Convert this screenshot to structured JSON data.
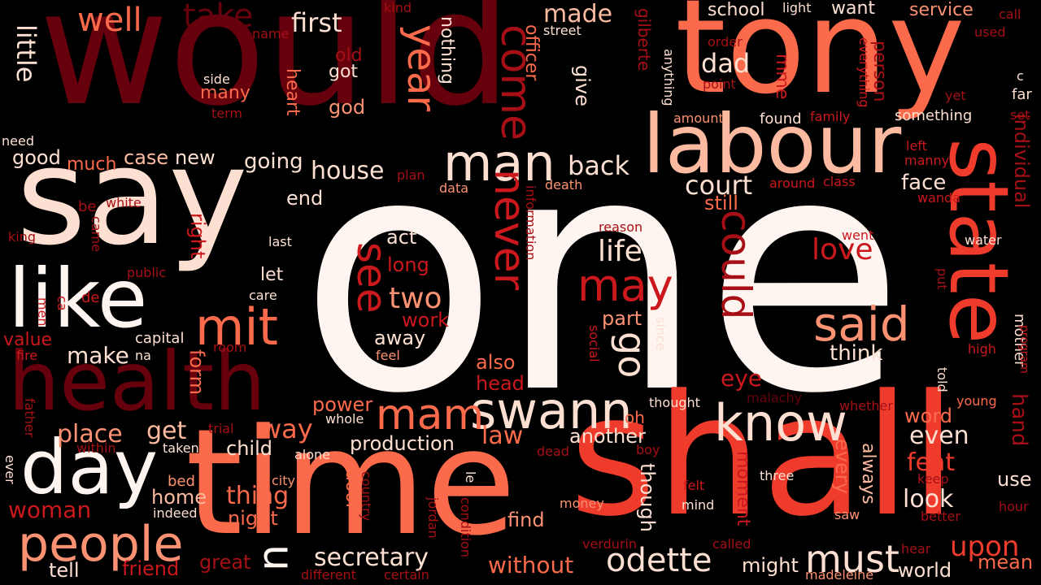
{
  "background": "#000000",
  "palette": {
    "darkest": "#67000d",
    "dark": "#a50f15",
    "red": "#cb181d",
    "bright_red": "#ef3b2c",
    "salmon": "#fb6a4a",
    "light_salmon": "#fc9272",
    "peach": "#fcbba1",
    "pale": "#fee0d2",
    "near_white": "#fff5f0"
  },
  "words": [
    {
      "text": "one",
      "color": "#fff5f0"
    },
    {
      "text": "would",
      "color": "#67000d"
    },
    {
      "text": "tony",
      "color": "#fb6a4a"
    },
    {
      "text": "say",
      "color": "#fee0d2"
    },
    {
      "text": "time",
      "color": "#fb6a4a"
    },
    {
      "text": "shall",
      "color": "#ef3b2c"
    },
    {
      "text": "labour",
      "color": "#fcbba1"
    },
    {
      "text": "state",
      "color": "#ef3b2c"
    },
    {
      "text": "health",
      "color": "#67000d"
    },
    {
      "text": "like",
      "color": "#fff5f0"
    },
    {
      "text": "day",
      "color": "#fff5f0"
    },
    {
      "text": "swann",
      "color": "#fee0d2"
    },
    {
      "text": "know",
      "color": "#fee0d2"
    },
    {
      "text": "man",
      "color": "#fee0d2"
    },
    {
      "text": "people",
      "color": "#fc9272"
    },
    {
      "text": "mit",
      "color": "#fb6a4a"
    },
    {
      "text": "said",
      "color": "#fc9272"
    },
    {
      "text": "odette",
      "color": "#fee0d2"
    },
    {
      "text": "mam",
      "color": "#fb6a4a"
    },
    {
      "text": "may",
      "color": "#cb181d"
    },
    {
      "text": "come",
      "color": "#a50f15"
    },
    {
      "text": "year",
      "color": "#fb6a4a"
    },
    {
      "text": "never",
      "color": "#cb181d"
    },
    {
      "text": "could",
      "color": "#a50f15"
    },
    {
      "text": "see",
      "color": "#cb181d"
    },
    {
      "text": "go",
      "color": "#fee0d2"
    },
    {
      "text": "must",
      "color": "#fee0d2"
    },
    {
      "text": "u",
      "color": "#fff5f0"
    },
    {
      "text": "well",
      "color": "#fb6a4a"
    },
    {
      "text": "take",
      "color": "#67000d"
    },
    {
      "text": "first",
      "color": "#fee0d2"
    },
    {
      "text": "made",
      "color": "#fcbba1"
    },
    {
      "text": "school",
      "color": "#fee0d2"
    },
    {
      "text": "want",
      "color": "#fee0d2"
    },
    {
      "text": "service",
      "color": "#fc9272"
    },
    {
      "text": "little",
      "color": "#fee0d2"
    },
    {
      "text": "dad",
      "color": "#fee0d2"
    },
    {
      "text": "back",
      "color": "#fee0d2"
    },
    {
      "text": "court",
      "color": "#fee0d2"
    },
    {
      "text": "still",
      "color": "#fb6a4a"
    },
    {
      "text": "house",
      "color": "#fee0d2"
    },
    {
      "text": "good",
      "color": "#fee0d2"
    },
    {
      "text": "case",
      "color": "#fcbba1"
    },
    {
      "text": "new",
      "color": "#fee0d2"
    },
    {
      "text": "much",
      "color": "#fb6a4a"
    },
    {
      "text": "going",
      "color": "#fee0d2"
    },
    {
      "text": "end",
      "color": "#fee0d2"
    },
    {
      "text": "face",
      "color": "#fee0d2"
    },
    {
      "text": "individual",
      "color": "#a50f15"
    },
    {
      "text": "life",
      "color": "#fee0d2"
    },
    {
      "text": "love",
      "color": "#cb181d"
    },
    {
      "text": "two",
      "color": "#fc9272"
    },
    {
      "text": "act",
      "color": "#fee0d2"
    },
    {
      "text": "long",
      "color": "#cb181d"
    },
    {
      "text": "make",
      "color": "#fee0d2"
    },
    {
      "text": "form",
      "color": "#fb6a4a"
    },
    {
      "text": "right",
      "color": "#cb181d"
    },
    {
      "text": "let",
      "color": "#fee0d2"
    },
    {
      "text": "think",
      "color": "#fee0d2"
    },
    {
      "text": "eye",
      "color": "#cb181d"
    },
    {
      "text": "part",
      "color": "#fc9272"
    },
    {
      "text": "away",
      "color": "#fee0d2"
    },
    {
      "text": "work",
      "color": "#cb181d"
    },
    {
      "text": "also",
      "color": "#fb6a4a"
    },
    {
      "text": "head",
      "color": "#cb181d"
    },
    {
      "text": "power",
      "color": "#fb6a4a"
    },
    {
      "text": "place",
      "color": "#fc9272"
    },
    {
      "text": "get",
      "color": "#fcbba1"
    },
    {
      "text": "way",
      "color": "#fb6a4a"
    },
    {
      "text": "law",
      "color": "#fb6a4a"
    },
    {
      "text": "child",
      "color": "#fee0d2"
    },
    {
      "text": "production",
      "color": "#fee0d2"
    },
    {
      "text": "another",
      "color": "#fee0d2"
    },
    {
      "text": "even",
      "color": "#fee0d2"
    },
    {
      "text": "feat",
      "color": "#ef3b2c"
    },
    {
      "text": "hand",
      "color": "#a50f15"
    },
    {
      "text": "word",
      "color": "#fb6a4a"
    },
    {
      "text": "every",
      "color": "#fb6a4a"
    },
    {
      "text": "always",
      "color": "#fcbba1"
    },
    {
      "text": "look",
      "color": "#fee0d2"
    },
    {
      "text": "upon",
      "color": "#ef3b2c"
    },
    {
      "text": "use",
      "color": "#fee0d2"
    },
    {
      "text": "thing",
      "color": "#fb6a4a"
    },
    {
      "text": "woman",
      "color": "#cb181d"
    },
    {
      "text": "home",
      "color": "#fcbba1"
    },
    {
      "text": "night",
      "color": "#fb6a4a"
    },
    {
      "text": "door",
      "color": "#fb6a4a"
    },
    {
      "text": "find",
      "color": "#fc9272"
    },
    {
      "text": "though",
      "color": "#fee0d2"
    },
    {
      "text": "moment",
      "color": "#cb181d"
    },
    {
      "text": "secretary",
      "color": "#fee0d2"
    },
    {
      "text": "without",
      "color": "#fb6a4a"
    },
    {
      "text": "might",
      "color": "#fee0d2"
    },
    {
      "text": "world",
      "color": "#fee0d2"
    },
    {
      "text": "mean",
      "color": "#fb6a4a"
    },
    {
      "text": "tell",
      "color": "#fee0d2"
    },
    {
      "text": "friend",
      "color": "#cb181d"
    },
    {
      "text": "great",
      "color": "#a50f15"
    },
    {
      "text": "nothing",
      "color": "#fee0d2"
    },
    {
      "text": "officer",
      "color": "#fb6a4a"
    },
    {
      "text": "give",
      "color": "#fee0d2"
    },
    {
      "text": "gilberte",
      "color": "#a50f15"
    },
    {
      "text": "mme",
      "color": "#cb181d"
    },
    {
      "text": "person",
      "color": "#a50f15"
    },
    {
      "text": "got",
      "color": "#fee0d2"
    },
    {
      "text": "god",
      "color": "#fc9272"
    },
    {
      "text": "old",
      "color": "#a50f15"
    },
    {
      "text": "many",
      "color": "#fb6a4a"
    },
    {
      "text": "heart",
      "color": "#fb6a4a"
    },
    {
      "text": "found",
      "color": "#fee0d2"
    },
    {
      "text": "something",
      "color": "#fee0d2"
    },
    {
      "text": "family",
      "color": "#cb181d"
    },
    {
      "text": "amount",
      "color": "#fc9272"
    },
    {
      "text": "everything",
      "color": "#cb181d"
    },
    {
      "text": "yet",
      "color": "#a50f15"
    },
    {
      "text": "far",
      "color": "#fee0d2"
    },
    {
      "text": "set",
      "color": "#a50f15"
    },
    {
      "text": "left",
      "color": "#cb181d"
    },
    {
      "text": "manny",
      "color": "#cb181d"
    },
    {
      "text": "class",
      "color": "#cb181d"
    },
    {
      "text": "around",
      "color": "#cb181d"
    },
    {
      "text": "wanda",
      "color": "#cb181d"
    },
    {
      "text": "water",
      "color": "#fee0d2"
    },
    {
      "text": "went",
      "color": "#cb181d"
    },
    {
      "text": "plan",
      "color": "#a50f15"
    },
    {
      "text": "data",
      "color": "#fc9272"
    },
    {
      "text": "death",
      "color": "#fc9272"
    },
    {
      "text": "information",
      "color": "#a50f15"
    },
    {
      "text": "reason",
      "color": "#a50f15"
    },
    {
      "text": "since",
      "color": "#fee0d2"
    },
    {
      "text": "social",
      "color": "#cb181d"
    },
    {
      "text": "le",
      "color": "#fee0d2"
    },
    {
      "text": "thought",
      "color": "#fee0d2"
    },
    {
      "text": "oh",
      "color": "#fb6a4a"
    },
    {
      "text": "boy",
      "color": "#a50f15"
    },
    {
      "text": "malachy",
      "color": "#67000d"
    },
    {
      "text": "whether",
      "color": "#a50f15"
    },
    {
      "text": "young",
      "color": "#fb6a4a"
    },
    {
      "text": "told",
      "color": "#fee0d2"
    },
    {
      "text": "mother",
      "color": "#fee0d2"
    },
    {
      "text": "high",
      "color": "#cb181d"
    },
    {
      "text": "program",
      "color": "#cb181d"
    },
    {
      "text": "put",
      "color": "#a50f15"
    },
    {
      "text": "felt",
      "color": "#cb181d"
    },
    {
      "text": "mind",
      "color": "#fee0d2"
    },
    {
      "text": "three",
      "color": "#fee0d2"
    },
    {
      "text": "keep",
      "color": "#a50f15"
    },
    {
      "text": "saw",
      "color": "#fc9272"
    },
    {
      "text": "better",
      "color": "#a50f15"
    },
    {
      "text": "hour",
      "color": "#a50f15"
    },
    {
      "text": "hear",
      "color": "#a50f15"
    },
    {
      "text": "called",
      "color": "#a50f15"
    },
    {
      "text": "money",
      "color": "#fc9272"
    },
    {
      "text": "verdurin",
      "color": "#a50f15"
    },
    {
      "text": "madeleine",
      "color": "#fc9272"
    },
    {
      "text": "different",
      "color": "#a50f15"
    },
    {
      "text": "certain",
      "color": "#a50f15"
    },
    {
      "text": "jordan",
      "color": "#a50f15"
    },
    {
      "text": "condition",
      "color": "#a50f15"
    },
    {
      "text": "country",
      "color": "#a50f15"
    },
    {
      "text": "city",
      "color": "#fc9272"
    },
    {
      "text": "bed",
      "color": "#fc9272"
    },
    {
      "text": "indeed",
      "color": "#fee0d2"
    },
    {
      "text": "taken",
      "color": "#fee0d2"
    },
    {
      "text": "alone",
      "color": "#fee0d2"
    },
    {
      "text": "dead",
      "color": "#a50f15"
    },
    {
      "text": "trial",
      "color": "#a50f15"
    },
    {
      "text": "whole",
      "color": "#fee0d2"
    },
    {
      "text": "within",
      "color": "#a50f15"
    },
    {
      "text": "father",
      "color": "#a50f15"
    },
    {
      "text": "ever",
      "color": "#fee0d2"
    },
    {
      "text": "na",
      "color": "#fee0d2"
    },
    {
      "text": "capital",
      "color": "#fee0d2"
    },
    {
      "text": "room",
      "color": "#a50f15"
    },
    {
      "text": "feel",
      "color": "#fc9272"
    },
    {
      "text": "value",
      "color": "#cb181d"
    },
    {
      "text": "fire",
      "color": "#cb181d"
    },
    {
      "text": "men",
      "color": "#cb181d"
    },
    {
      "text": "ca",
      "color": "#cb181d"
    },
    {
      "text": "de",
      "color": "#cb181d"
    },
    {
      "text": "public",
      "color": "#a50f15"
    },
    {
      "text": "care",
      "color": "#fee0d2"
    },
    {
      "text": "last",
      "color": "#fee0d2"
    },
    {
      "text": "king",
      "color": "#a50f15"
    },
    {
      "text": "came",
      "color": "#a50f15"
    },
    {
      "text": "white",
      "color": "#a50f15"
    },
    {
      "text": "be",
      "color": "#a50f15"
    },
    {
      "text": "need",
      "color": "#fee0d2"
    },
    {
      "text": "side",
      "color": "#fee0d2"
    },
    {
      "text": "term",
      "color": "#a50f15"
    },
    {
      "text": "name",
      "color": "#a50f15"
    },
    {
      "text": "kind",
      "color": "#a50f15"
    },
    {
      "text": "street",
      "color": "#fee0d2"
    },
    {
      "text": "light",
      "color": "#fee0d2"
    },
    {
      "text": "order",
      "color": "#a50f15"
    },
    {
      "text": "point",
      "color": "#a50f15"
    },
    {
      "text": "anything",
      "color": "#fee0d2"
    },
    {
      "text": "call",
      "color": "#a50f15"
    },
    {
      "text": "used",
      "color": "#a50f15"
    },
    {
      "text": "c",
      "color": "#fee0d2"
    }
  ]
}
